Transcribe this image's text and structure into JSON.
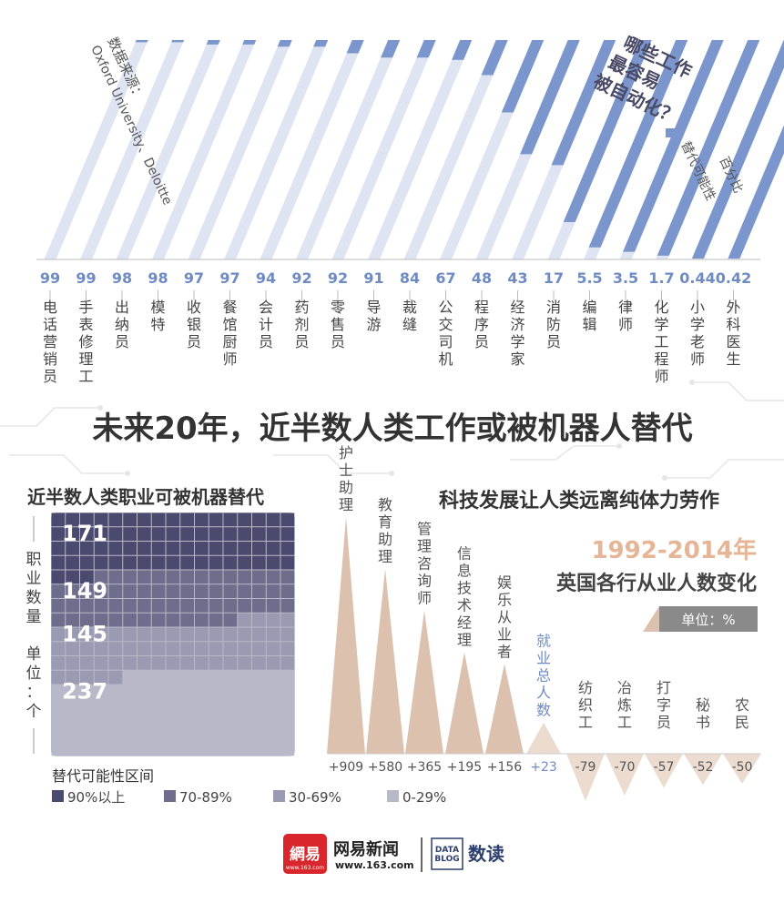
{
  "colors": {
    "blue_dark": "#7b96cc",
    "blue_light": "#dfe4f2",
    "tan": "#dcc1ae",
    "tan_light": "#ecdcd0",
    "number_blue": "#6f8bc4",
    "text_dark": "#333333",
    "text_gray": "#666666",
    "pos_total": "#6f8bc4",
    "badge_bg": "#8a8a8a",
    "subtitle_orange": "#e6b597",
    "grid_90": "#4a4a6e",
    "grid_70": "#6e6e8c",
    "grid_30": "#9a9ab2",
    "grid_0": "#b8b8c8"
  },
  "top_chart": {
    "source_label": "数据来源：",
    "source_name": "Oxford University、Deloitte",
    "title_line1": "哪些工作",
    "title_line2": "最容易",
    "title_line3": "被自动化？",
    "legend_label": "替代可能性",
    "legend_unit": "百分比"
  },
  "chart_data": [
    {
      "type": "bar",
      "title": "哪些工作最容易被自动化？",
      "ylabel": "替代可能性 百分比",
      "ylim": [
        0,
        100
      ],
      "categories": [
        "电话营销员",
        "手表修理工",
        "出纳员",
        "模特",
        "收银员",
        "餐馆厨师",
        "会计员",
        "药剂员",
        "零售员",
        "导游",
        "裁缝",
        "公交司机",
        "程序员",
        "经济学家",
        "消防员",
        "编辑",
        "律师",
        "化学工程师",
        "小学老师",
        "外科医生"
      ],
      "values": [
        99,
        99,
        98,
        98,
        97,
        97,
        94,
        92,
        92,
        91,
        84,
        67,
        48,
        43,
        17,
        5.5,
        3.5,
        1.7,
        0.44,
        0.42
      ],
      "value_labels": [
        "99",
        "99",
        "98",
        "98",
        "97",
        "97",
        "94",
        "92",
        "92",
        "91",
        "84",
        "67",
        "48",
        "43",
        "17",
        "5.5",
        "3.5",
        "1.7",
        "0.44",
        "0.42"
      ]
    },
    {
      "type": "heatmap",
      "title": "近半数人类职业可被机器替代",
      "ylabel": "职业数量 单位：个",
      "series": [
        {
          "name": "90%以上",
          "value": 171
        },
        {
          "name": "70-89%",
          "value": 149
        },
        {
          "name": "30-69%",
          "value": 145
        },
        {
          "name": "0-29%",
          "value": 237
        }
      ],
      "legend_title": "替代可能性区间"
    },
    {
      "type": "bar",
      "title": "科技发展让人类远离纯体力劳作",
      "subtitle": "1992-2014年 英国各行从业人数变化",
      "unit": "单位：%",
      "categories": [
        "护士助理",
        "教育助理",
        "管理咨询师",
        "信息技术经理",
        "娱乐从业者",
        "就业总人数",
        "纺织工",
        "冶炼工",
        "打字员",
        "秘书",
        "农民"
      ],
      "values": [
        909,
        580,
        365,
        195,
        156,
        23,
        -79,
        -70,
        -57,
        -52,
        -50
      ],
      "value_labels": [
        "+909",
        "+580",
        "+365",
        "+195",
        "+156",
        "+23",
        "-79",
        "-70",
        "-57",
        "-52",
        "-50"
      ]
    }
  ],
  "headline": "未来20年，近半数人类工作或被机器人替代",
  "footer": {
    "logo_glyph": "網易",
    "logo_url": "www.163.com",
    "brand": "网易新闻",
    "url": "www.163.com",
    "datablog": "DATA BLOG",
    "shudu": "数读"
  }
}
